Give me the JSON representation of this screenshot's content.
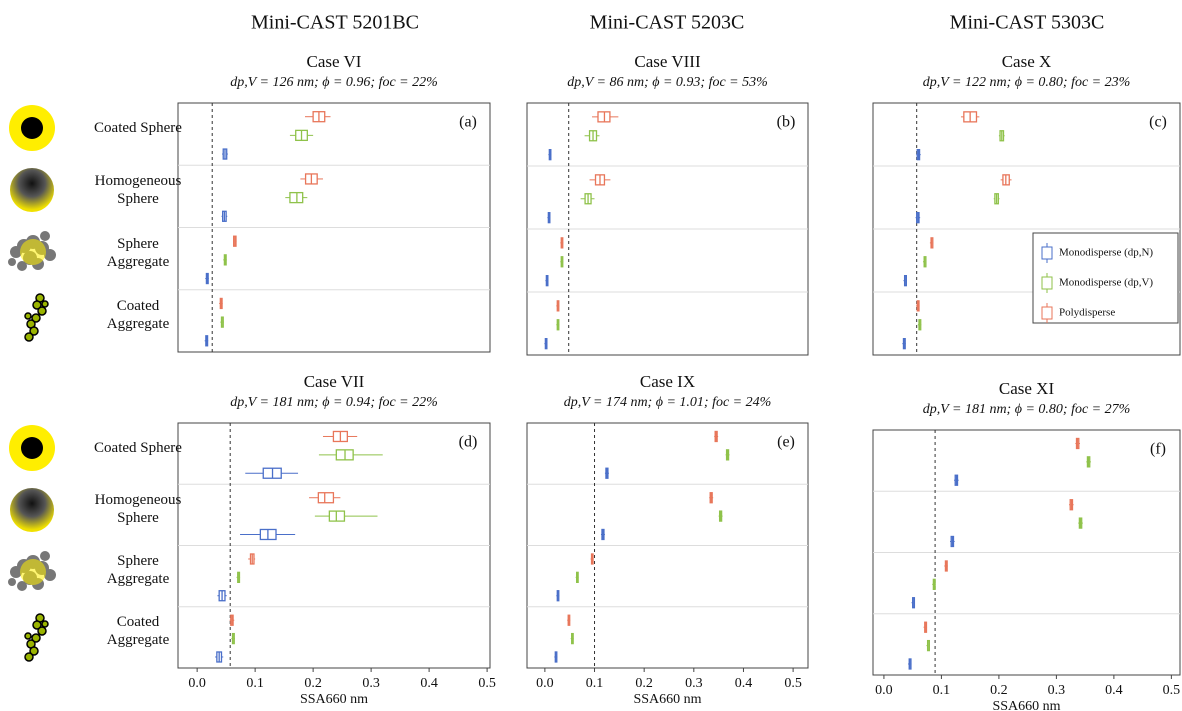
{
  "column_titles": [
    "Mini-CAST 5201BC",
    "Mini-CAST 5203C",
    "Mini-CAST 5303C"
  ],
  "chart_data": [
    {
      "type": "box",
      "title": "Case VI",
      "subtitle": "dp,V = 126 nm; ϕ = 0.96; foc = 22%",
      "panel_label": "(a)",
      "categories": [
        "Coated Sphere",
        "Homogeneous Sphere",
        "Sphere Aggregate",
        "Coated Aggregate"
      ],
      "xlim": [
        -0.033,
        0.505
      ],
      "ref_line": 0.026,
      "series": [
        {
          "color": "#4a6fc9",
          "values": [
            {
              "min": 0.043,
              "q1": 0.045,
              "median": 0.048,
              "q3": 0.051,
              "max": 0.053
            },
            {
              "min": 0.042,
              "q1": 0.044,
              "median": 0.047,
              "q3": 0.05,
              "max": 0.052
            },
            {
              "min": 0.014,
              "q1": 0.016,
              "median": 0.017,
              "q3": 0.019,
              "max": 0.02
            },
            {
              "min": 0.013,
              "q1": 0.015,
              "median": 0.016,
              "q3": 0.018,
              "max": 0.019
            }
          ]
        },
        {
          "color": "#8fc24a",
          "values": [
            {
              "min": 0.16,
              "q1": 0.17,
              "median": 0.18,
              "q3": 0.19,
              "max": 0.2
            },
            {
              "min": 0.152,
              "q1": 0.16,
              "median": 0.172,
              "q3": 0.182,
              "max": 0.19
            },
            {
              "min": 0.045,
              "q1": 0.047,
              "median": 0.048,
              "q3": 0.05,
              "max": 0.051
            },
            {
              "min": 0.04,
              "q1": 0.042,
              "median": 0.043,
              "q3": 0.045,
              "max": 0.046
            }
          ]
        },
        {
          "color": "#e8765a",
          "values": [
            {
              "min": 0.186,
              "q1": 0.2,
              "median": 0.21,
              "q3": 0.22,
              "max": 0.23
            },
            {
              "min": 0.178,
              "q1": 0.187,
              "median": 0.197,
              "q3": 0.207,
              "max": 0.217
            },
            {
              "min": 0.062,
              "q1": 0.063,
              "median": 0.065,
              "q3": 0.067,
              "max": 0.068
            },
            {
              "min": 0.038,
              "q1": 0.04,
              "median": 0.041,
              "q3": 0.043,
              "max": 0.044
            }
          ]
        }
      ]
    },
    {
      "type": "box",
      "title": "Case VIII",
      "subtitle": "dp,V = 86 nm; ϕ = 0.93; foc = 53%",
      "panel_label": "(b)",
      "xlim": [
        -0.036,
        0.53
      ],
      "ref_line": 0.048,
      "series": [
        {
          "color": "#4a6fc9",
          "values": [
            {
              "min": 0.007,
              "q1": 0.009,
              "median": 0.01,
              "q3": 0.012,
              "max": 0.013
            },
            {
              "min": 0.005,
              "q1": 0.007,
              "median": 0.008,
              "q3": 0.01,
              "max": 0.011
            },
            {
              "min": 0.001,
              "q1": 0.003,
              "median": 0.004,
              "q3": 0.006,
              "max": 0.007
            },
            {
              "min": -0.001,
              "q1": 0.001,
              "median": 0.002,
              "q3": 0.004,
              "max": 0.005
            }
          ]
        },
        {
          "color": "#8fc24a",
          "values": [
            {
              "min": 0.08,
              "q1": 0.09,
              "median": 0.097,
              "q3": 0.104,
              "max": 0.11
            },
            {
              "min": 0.072,
              "q1": 0.081,
              "median": 0.087,
              "q3": 0.093,
              "max": 0.1
            },
            {
              "min": 0.031,
              "q1": 0.033,
              "median": 0.034,
              "q3": 0.036,
              "max": 0.037
            },
            {
              "min": 0.023,
              "q1": 0.025,
              "median": 0.026,
              "q3": 0.028,
              "max": 0.029
            }
          ]
        },
        {
          "color": "#e8765a",
          "values": [
            {
              "min": 0.095,
              "q1": 0.107,
              "median": 0.12,
              "q3": 0.131,
              "max": 0.148
            },
            {
              "min": 0.09,
              "q1": 0.102,
              "median": 0.111,
              "q3": 0.12,
              "max": 0.132
            },
            {
              "min": 0.031,
              "q1": 0.033,
              "median": 0.034,
              "q3": 0.036,
              "max": 0.037
            },
            {
              "min": 0.023,
              "q1": 0.025,
              "median": 0.026,
              "q3": 0.028,
              "max": 0.029
            }
          ]
        }
      ]
    },
    {
      "type": "box",
      "title": "Case X",
      "subtitle": "dp,V = 122 nm; ϕ = 0.80; foc = 23%",
      "panel_label": "(c)",
      "xlim": [
        -0.019,
        0.515
      ],
      "ref_line": 0.057,
      "legend": "right",
      "series": [
        {
          "name": "Monodisperse (dp,N)",
          "color": "#4a6fc9",
          "values": [
            {
              "min": 0.056,
              "q1": 0.058,
              "median": 0.06,
              "q3": 0.062,
              "max": 0.064
            },
            {
              "min": 0.055,
              "q1": 0.057,
              "median": 0.059,
              "q3": 0.061,
              "max": 0.063
            },
            {
              "min": 0.034,
              "q1": 0.036,
              "median": 0.037,
              "q3": 0.039,
              "max": 0.04
            },
            {
              "min": 0.032,
              "q1": 0.034,
              "median": 0.035,
              "q3": 0.037,
              "max": 0.038
            }
          ]
        },
        {
          "name": "Monodisperse (dp,V)",
          "color": "#8fc24a",
          "values": [
            {
              "min": 0.2,
              "q1": 0.202,
              "median": 0.205,
              "q3": 0.208,
              "max": 0.21
            },
            {
              "min": 0.191,
              "q1": 0.193,
              "median": 0.196,
              "q3": 0.199,
              "max": 0.201
            },
            {
              "min": 0.068,
              "q1": 0.07,
              "median": 0.071,
              "q3": 0.073,
              "max": 0.074
            },
            {
              "min": 0.059,
              "q1": 0.061,
              "median": 0.062,
              "q3": 0.064,
              "max": 0.065
            }
          ]
        },
        {
          "name": "Polydisperse",
          "color": "#e8765a",
          "values": [
            {
              "min": 0.134,
              "q1": 0.139,
              "median": 0.15,
              "q3": 0.161,
              "max": 0.166
            },
            {
              "min": 0.203,
              "q1": 0.207,
              "median": 0.212,
              "q3": 0.218,
              "max": 0.222
            },
            {
              "min": 0.08,
              "q1": 0.082,
              "median": 0.083,
              "q3": 0.085,
              "max": 0.086
            },
            {
              "min": 0.056,
              "q1": 0.058,
              "median": 0.059,
              "q3": 0.061,
              "max": 0.062
            }
          ]
        }
      ]
    },
    {
      "type": "box",
      "title": "Case VII",
      "subtitle": "dp,V = 181 nm; ϕ = 0.94; foc = 22%",
      "panel_label": "(d)",
      "categories": [
        "Coated Sphere",
        "Homogeneous Sphere",
        "Sphere Aggregate",
        "Coated Aggregate"
      ],
      "xlim": [
        -0.033,
        0.505
      ],
      "ref_line": 0.057,
      "xlabel": "SSA660 nm",
      "xticks": [
        {
          "value": 0,
          "label": "0.0"
        },
        0.1,
        0.2,
        0.3,
        0.4,
        0.5
      ],
      "series": [
        {
          "color": "#4a6fc9",
          "values": [
            {
              "min": 0.083,
              "q1": 0.114,
              "median": 0.13,
              "q3": 0.145,
              "max": 0.174
            },
            {
              "min": 0.074,
              "q1": 0.109,
              "median": 0.122,
              "q3": 0.136,
              "max": 0.169
            },
            {
              "min": 0.035,
              "q1": 0.038,
              "median": 0.043,
              "q3": 0.048,
              "max": 0.051
            },
            {
              "min": 0.031,
              "q1": 0.034,
              "median": 0.038,
              "q3": 0.042,
              "max": 0.045
            }
          ]
        },
        {
          "color": "#8fc24a",
          "values": [
            {
              "min": 0.21,
              "q1": 0.24,
              "median": 0.255,
              "q3": 0.269,
              "max": 0.32
            },
            {
              "min": 0.203,
              "q1": 0.228,
              "median": 0.24,
              "q3": 0.254,
              "max": 0.311
            },
            {
              "min": 0.068,
              "q1": 0.07,
              "median": 0.071,
              "q3": 0.073,
              "max": 0.074
            },
            {
              "min": 0.059,
              "q1": 0.061,
              "median": 0.062,
              "q3": 0.064,
              "max": 0.065
            }
          ]
        },
        {
          "color": "#e8765a",
          "values": [
            {
              "min": 0.217,
              "q1": 0.235,
              "median": 0.247,
              "q3": 0.259,
              "max": 0.276
            },
            {
              "min": 0.193,
              "q1": 0.209,
              "median": 0.22,
              "q3": 0.235,
              "max": 0.247
            },
            {
              "min": 0.088,
              "q1": 0.092,
              "median": 0.095,
              "q3": 0.098,
              "max": 0.1
            },
            {
              "min": 0.056,
              "q1": 0.058,
              "median": 0.06,
              "q3": 0.062,
              "max": 0.064
            }
          ]
        }
      ]
    },
    {
      "type": "box",
      "title": "Case IX",
      "subtitle": "dp,V = 174 nm; ϕ = 1.01; foc = 24%",
      "panel_label": "(e)",
      "xlim": [
        -0.036,
        0.53
      ],
      "ref_line": 0.1,
      "xlabel": "SSA660 nm",
      "xticks": [
        {
          "value": 0,
          "label": "0.0"
        },
        0.1,
        0.2,
        0.3,
        0.4,
        0.5
      ],
      "series": [
        {
          "color": "#4a6fc9",
          "values": [
            {
              "min": 0.121,
              "q1": 0.123,
              "median": 0.125,
              "q3": 0.127,
              "max": 0.129
            },
            {
              "min": 0.113,
              "q1": 0.115,
              "median": 0.117,
              "q3": 0.119,
              "max": 0.121
            },
            {
              "min": 0.023,
              "q1": 0.025,
              "median": 0.026,
              "q3": 0.028,
              "max": 0.029
            },
            {
              "min": 0.019,
              "q1": 0.021,
              "median": 0.022,
              "q3": 0.024,
              "max": 0.025
            }
          ]
        },
        {
          "color": "#8fc24a",
          "values": [
            {
              "min": 0.364,
              "q1": 0.366,
              "median": 0.368,
              "q3": 0.37,
              "max": 0.372
            },
            {
              "min": 0.35,
              "q1": 0.352,
              "median": 0.354,
              "q3": 0.356,
              "max": 0.358
            },
            {
              "min": 0.062,
              "q1": 0.064,
              "median": 0.065,
              "q3": 0.067,
              "max": 0.068
            },
            {
              "min": 0.052,
              "q1": 0.054,
              "median": 0.055,
              "q3": 0.057,
              "max": 0.058
            }
          ]
        },
        {
          "color": "#e8765a",
          "values": [
            {
              "min": 0.341,
              "q1": 0.343,
              "median": 0.345,
              "q3": 0.347,
              "max": 0.349
            },
            {
              "min": 0.331,
              "q1": 0.333,
              "median": 0.335,
              "q3": 0.337,
              "max": 0.339
            },
            {
              "min": 0.092,
              "q1": 0.094,
              "median": 0.095,
              "q3": 0.097,
              "max": 0.098
            },
            {
              "min": 0.045,
              "q1": 0.047,
              "median": 0.048,
              "q3": 0.05,
              "max": 0.051
            }
          ]
        }
      ]
    },
    {
      "type": "box",
      "title": "Case XI",
      "subtitle": "dp,V = 181 nm; ϕ = 0.80; foc = 27%",
      "panel_label": "(f)",
      "xlim": [
        -0.019,
        0.515
      ],
      "ref_line": 0.089,
      "xlabel": "SSA660 nm",
      "xticks": [
        {
          "value": 0,
          "label": "0.0"
        },
        0.1,
        0.2,
        0.3,
        0.4,
        0.5
      ],
      "series": [
        {
          "color": "#4a6fc9",
          "values": [
            {
              "min": 0.122,
              "q1": 0.124,
              "median": 0.126,
              "q3": 0.128,
              "max": 0.13
            },
            {
              "min": 0.115,
              "q1": 0.117,
              "median": 0.119,
              "q3": 0.121,
              "max": 0.123
            },
            {
              "min": 0.048,
              "q1": 0.05,
              "median": 0.051,
              "q3": 0.053,
              "max": 0.054
            },
            {
              "min": 0.042,
              "q1": 0.044,
              "median": 0.045,
              "q3": 0.047,
              "max": 0.048
            }
          ]
        },
        {
          "color": "#8fc24a",
          "values": [
            {
              "min": 0.352,
              "q1": 0.354,
              "median": 0.356,
              "q3": 0.358,
              "max": 0.36
            },
            {
              "min": 0.338,
              "q1": 0.34,
              "median": 0.342,
              "q3": 0.344,
              "max": 0.346
            },
            {
              "min": 0.084,
              "q1": 0.086,
              "median": 0.087,
              "q3": 0.089,
              "max": 0.09
            },
            {
              "min": 0.074,
              "q1": 0.076,
              "median": 0.077,
              "q3": 0.079,
              "max": 0.08
            }
          ]
        },
        {
          "color": "#e8765a",
          "values": [
            {
              "min": 0.333,
              "q1": 0.335,
              "median": 0.337,
              "q3": 0.339,
              "max": 0.341
            },
            {
              "min": 0.322,
              "q1": 0.324,
              "median": 0.326,
              "q3": 0.328,
              "max": 0.33
            },
            {
              "min": 0.105,
              "q1": 0.107,
              "median": 0.108,
              "q3": 0.11,
              "max": 0.111
            },
            {
              "min": 0.069,
              "q1": 0.071,
              "median": 0.072,
              "q3": 0.074,
              "max": 0.075
            }
          ]
        }
      ]
    }
  ]
}
